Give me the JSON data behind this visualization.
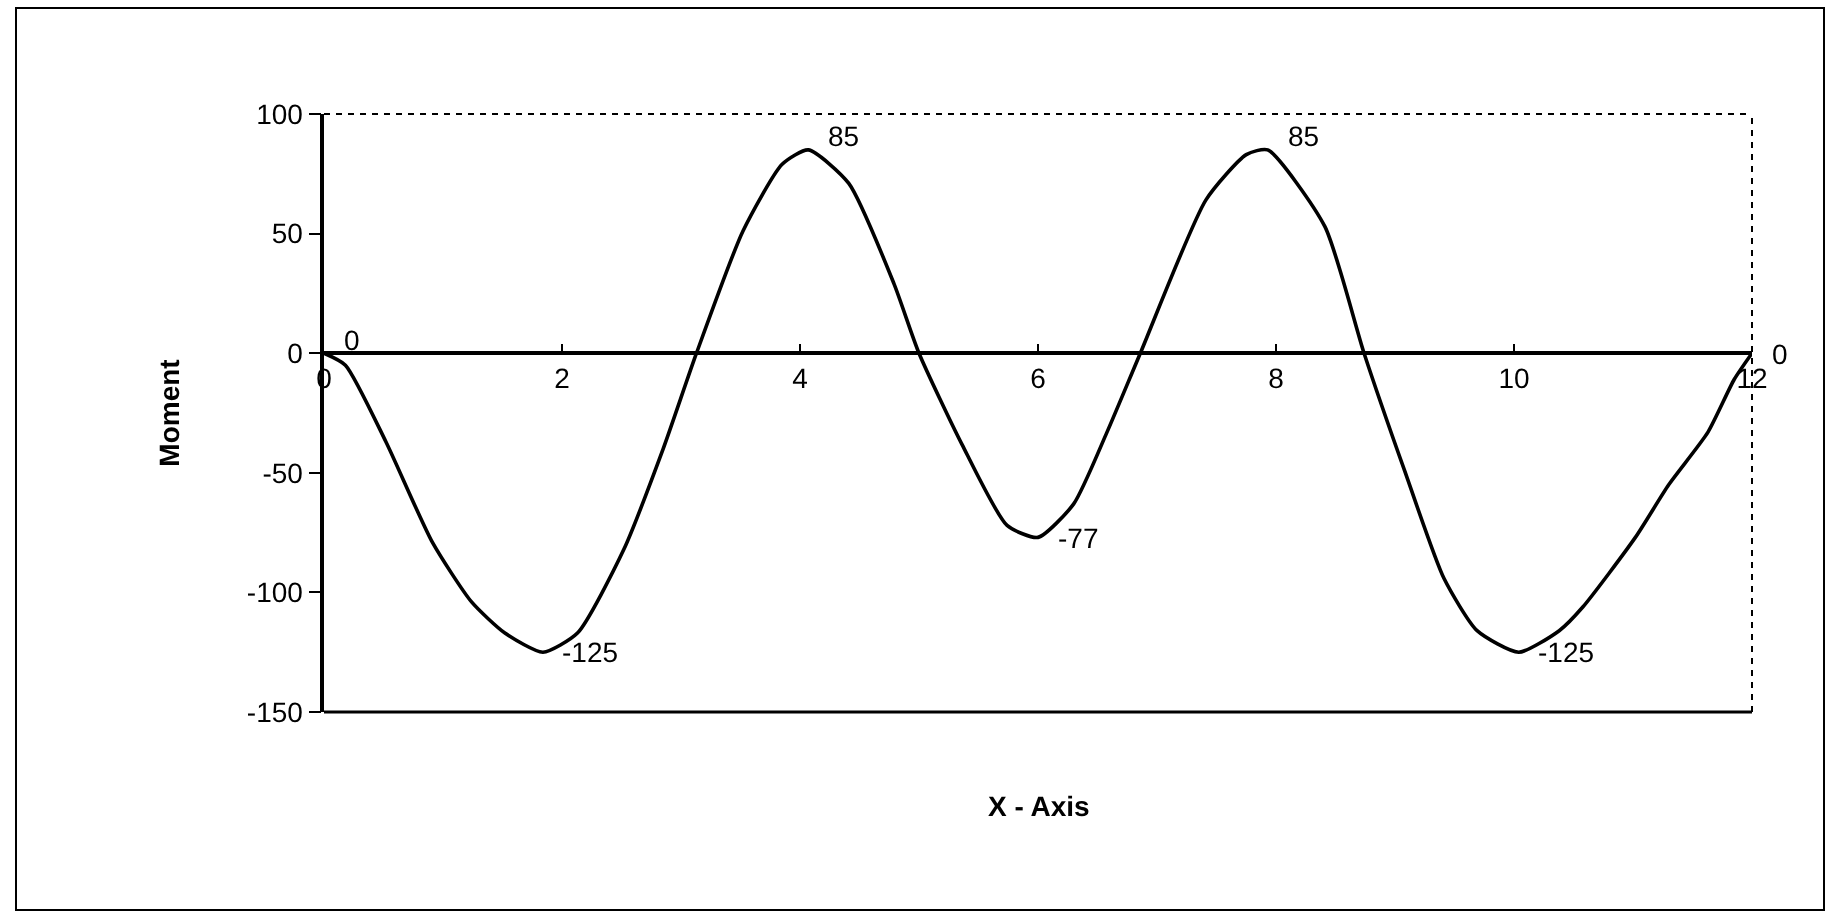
{
  "chart_data": {
    "type": "line",
    "xlabel": "X - Axis",
    "ylabel": "Moment",
    "series": [
      {
        "color": "#000000",
        "x": [
          0,
          0.18,
          0.52,
          0.91,
          1.24,
          1.52,
          1.84,
          2.13,
          2.52,
          2.85,
          3.13,
          3.52,
          3.85,
          4.07,
          4.41,
          4.79,
          5.0,
          5.36,
          5.74,
          6.0,
          6.3,
          6.58,
          6.86,
          7.41,
          7.75,
          7.93,
          8.41,
          8.74,
          9.08,
          9.41,
          9.69,
          10.04,
          10.38,
          10.58,
          11.02,
          11.3,
          11.63,
          11.85,
          12
        ],
        "values": [
          0,
          -5,
          -37,
          -79,
          -104,
          -117,
          -125,
          -117,
          -82,
          -40,
          0,
          51,
          79,
          85,
          71,
          29,
          0,
          -38,
          -72,
          -77,
          -63,
          -33,
          0,
          64,
          83,
          85,
          53,
          0,
          -49,
          -94,
          -116,
          -125,
          -116,
          -106,
          -77,
          -55,
          -33,
          -11,
          0
        ]
      }
    ],
    "xlim": [
      0,
      12
    ],
    "xticks": [
      0,
      2,
      4,
      6,
      8,
      10,
      12
    ],
    "ylim": [
      -150,
      100
    ],
    "yticks": [
      -150,
      -100,
      -50,
      0,
      50,
      100
    ],
    "annotations": [
      {
        "text": "0",
        "x": 0,
        "y": 0
      },
      {
        "text": "-125",
        "x": 1.84,
        "y": -125
      },
      {
        "text": "85",
        "x": 4.07,
        "y": 85
      },
      {
        "text": "-77",
        "x": 6.0,
        "y": -77
      },
      {
        "text": "85",
        "x": 7.93,
        "y": 85
      },
      {
        "text": "-125",
        "x": 10.04,
        "y": -125
      },
      {
        "text": "0",
        "x": 12,
        "y": 0
      }
    ]
  }
}
